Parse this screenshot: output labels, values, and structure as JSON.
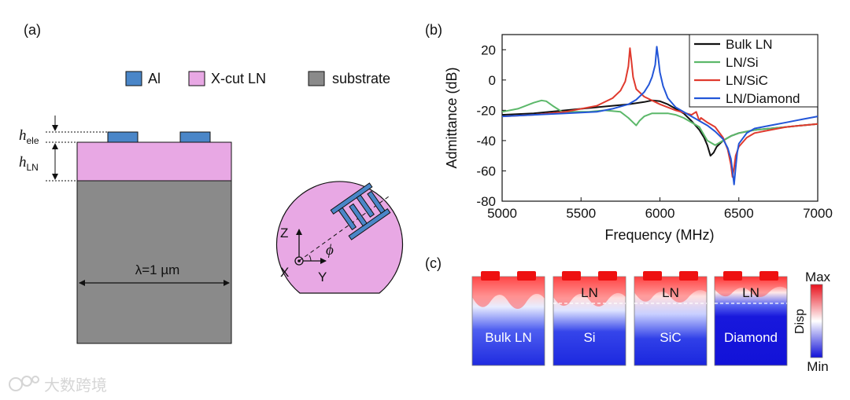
{
  "panels": {
    "a": "(a)",
    "b": "(b)",
    "c": "(c)"
  },
  "panel_a": {
    "legend": [
      {
        "label": "Al",
        "color": "#4a86c8"
      },
      {
        "label": "X-cut LN",
        "color": "#e8a8e4"
      },
      {
        "label": "substrate",
        "color": "#8a8a8a"
      }
    ],
    "h_ele": {
      "sym": "h",
      "sub": "ele"
    },
    "h_ln": {
      "sym": "h",
      "sub": "LN"
    },
    "lambda_label": "λ=1 µm",
    "wafer": {
      "z": "Z",
      "x": "X",
      "y": "Y",
      "phi": "ϕ"
    }
  },
  "chart_data": {
    "type": "line",
    "title": "",
    "xlabel": "Frequency (MHz)",
    "ylabel": "Admittance (dB)",
    "xlim": [
      5000,
      7000
    ],
    "ylim": [
      -80,
      30
    ],
    "xticks": [
      5000,
      5500,
      6000,
      6500,
      7000
    ],
    "yticks": [
      20,
      0,
      -20,
      -40,
      -60,
      -80
    ],
    "grid": false,
    "legend_position": "top-right",
    "series": [
      {
        "name": "Bulk LN",
        "color": "#111111",
        "x": [
          5000,
          5200,
          5400,
          5600,
          5800,
          5900,
          5950,
          6000,
          6050,
          6100,
          6150,
          6200,
          6250,
          6280,
          6300,
          6320,
          6340,
          6360,
          6400,
          6450,
          6500,
          6600,
          6700,
          6800,
          6900,
          7000
        ],
        "y": [
          -23,
          -22,
          -20,
          -18,
          -16,
          -14.5,
          -13.5,
          -14,
          -16,
          -19,
          -22,
          -27,
          -33,
          -38,
          -43,
          -50,
          -48,
          -44,
          -40,
          -37,
          -35,
          -33,
          -32,
          -31,
          -30,
          -29
        ]
      },
      {
        "name": "LN/Si",
        "color": "#5cb86a",
        "x": [
          5000,
          5100,
          5150,
          5200,
          5250,
          5280,
          5320,
          5380,
          5450,
          5550,
          5650,
          5750,
          5800,
          5830,
          5850,
          5870,
          5900,
          5950,
          6000,
          6050,
          6100,
          6150,
          6200,
          6250,
          6300,
          6350,
          6400,
          6450,
          6500,
          6600,
          6700,
          6800,
          6900,
          7000
        ],
        "y": [
          -21,
          -19,
          -17,
          -15,
          -13.5,
          -14,
          -17,
          -21,
          -21,
          -21,
          -20,
          -21,
          -25,
          -28,
          -30,
          -27,
          -24,
          -22,
          -22,
          -22,
          -23,
          -25,
          -28,
          -31,
          -40,
          -43,
          -40,
          -37,
          -35,
          -33,
          -32,
          -31,
          -30,
          -29
        ]
      },
      {
        "name": "LN/SiC",
        "color": "#e03a2e",
        "x": [
          5000,
          5200,
          5400,
          5600,
          5700,
          5750,
          5780,
          5800,
          5810,
          5820,
          5830,
          5850,
          5900,
          6000,
          6100,
          6200,
          6230,
          6250,
          6260,
          6300,
          6350,
          6400,
          6430,
          6450,
          6460,
          6470,
          6480,
          6500,
          6550,
          6600,
          6700,
          6800,
          6900,
          7000
        ],
        "y": [
          -24,
          -23,
          -21,
          -17,
          -12,
          -7,
          -1,
          9,
          21,
          12,
          2,
          -6,
          -11,
          -16,
          -20,
          -23,
          -21,
          -27,
          -25,
          -28,
          -31,
          -38,
          -46,
          -56,
          -64,
          -58,
          -50,
          -44,
          -38,
          -35,
          -33,
          -31,
          -30,
          -29
        ]
      },
      {
        "name": "LN/Diamond",
        "color": "#2356d8",
        "x": [
          5000,
          5200,
          5400,
          5600,
          5700,
          5800,
          5850,
          5900,
          5930,
          5950,
          5970,
          5980,
          5990,
          6000,
          6020,
          6050,
          6100,
          6200,
          6300,
          6350,
          6400,
          6430,
          6450,
          6460,
          6470,
          6480,
          6490,
          6500,
          6550,
          6600,
          6700,
          6800,
          6900,
          7000
        ],
        "y": [
          -24,
          -23,
          -22,
          -21,
          -19,
          -16,
          -13,
          -8,
          -3,
          2,
          10,
          22,
          14,
          5,
          -4,
          -12,
          -18,
          -24,
          -30,
          -34,
          -39,
          -45,
          -52,
          -60,
          -69,
          -58,
          -48,
          -42,
          -35,
          -32,
          -30,
          -28,
          -26,
          -24
        ]
      }
    ]
  },
  "panel_c": {
    "layer_label": "LN",
    "colorbar": {
      "max": "Max",
      "min": "Min",
      "label": "Disp"
    },
    "maps": [
      "Bulk LN",
      "Si",
      "SiC",
      "Diamond"
    ]
  },
  "watermark": "大数跨境"
}
